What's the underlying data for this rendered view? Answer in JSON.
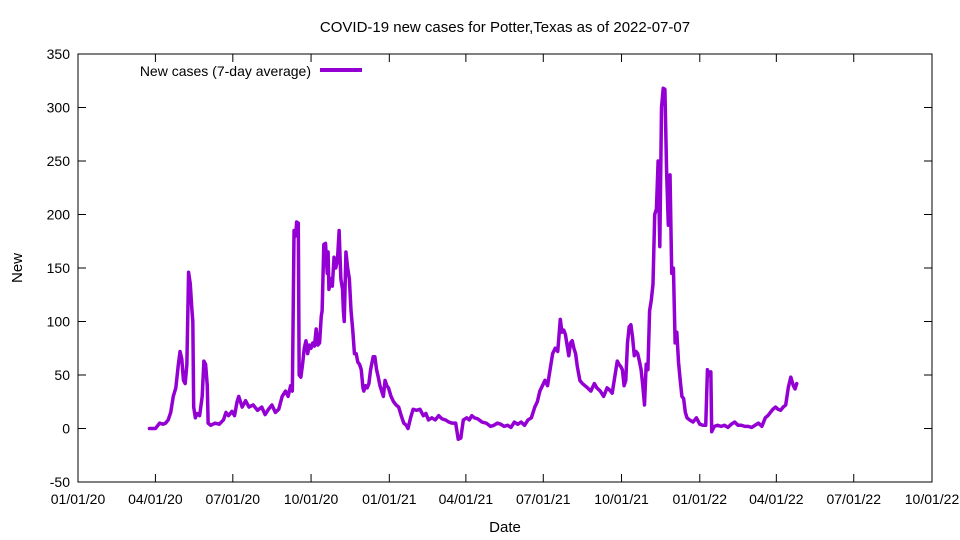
{
  "chart_data": {
    "type": "line",
    "title": "COVID-19 new cases for Potter,Texas as of 2022-07-07",
    "xlabel": "Date",
    "ylabel": "New",
    "xlim": [
      "2020-01-01",
      "2022-10-01"
    ],
    "ylim": [
      -50,
      350
    ],
    "x_ticks": [
      "01/01/20",
      "04/01/20",
      "07/01/20",
      "10/01/20",
      "01/01/21",
      "04/01/21",
      "07/01/21",
      "10/01/21",
      "01/01/22",
      "04/01/22",
      "07/01/22",
      "10/01/22"
    ],
    "x_tick_dates": [
      "2020-01-01",
      "2020-04-01",
      "2020-07-01",
      "2020-10-01",
      "2021-01-01",
      "2021-04-01",
      "2021-07-01",
      "2021-10-01",
      "2022-01-01",
      "2022-04-01",
      "2022-07-01",
      "2022-10-01"
    ],
    "y_ticks": [
      "-50",
      "0",
      "50",
      "100",
      "150",
      "200",
      "250",
      "300",
      "350"
    ],
    "y_tick_values": [
      -50,
      0,
      50,
      100,
      150,
      200,
      250,
      300,
      350
    ],
    "legend_position": "top-left",
    "grid": false,
    "series": [
      {
        "name": "New cases (7-day average)",
        "color": "#9400d3",
        "points": [
          [
            "2020-03-25",
            0
          ],
          [
            "2020-04-01",
            0
          ],
          [
            "2020-04-03",
            2
          ],
          [
            "2020-04-06",
            5
          ],
          [
            "2020-04-10",
            4
          ],
          [
            "2020-04-13",
            5
          ],
          [
            "2020-04-16",
            8
          ],
          [
            "2020-04-19",
            15
          ],
          [
            "2020-04-22",
            30
          ],
          [
            "2020-04-25",
            38
          ],
          [
            "2020-04-28",
            60
          ],
          [
            "2020-04-30",
            72
          ],
          [
            "2020-05-02",
            65
          ],
          [
            "2020-05-04",
            45
          ],
          [
            "2020-05-06",
            42
          ],
          [
            "2020-05-08",
            60
          ],
          [
            "2020-05-10",
            146
          ],
          [
            "2020-05-12",
            135
          ],
          [
            "2020-05-14",
            110
          ],
          [
            "2020-05-15",
            100
          ],
          [
            "2020-05-16",
            20
          ],
          [
            "2020-05-18",
            10
          ],
          [
            "2020-05-20",
            14
          ],
          [
            "2020-05-23",
            12
          ],
          [
            "2020-05-26",
            30
          ],
          [
            "2020-05-28",
            63
          ],
          [
            "2020-05-30",
            60
          ],
          [
            "2020-06-01",
            40
          ],
          [
            "2020-06-02",
            5
          ],
          [
            "2020-06-05",
            3
          ],
          [
            "2020-06-10",
            5
          ],
          [
            "2020-06-15",
            4
          ],
          [
            "2020-06-20",
            8
          ],
          [
            "2020-06-23",
            15
          ],
          [
            "2020-06-26",
            12
          ],
          [
            "2020-06-30",
            16
          ],
          [
            "2020-07-03",
            12
          ],
          [
            "2020-07-06",
            25
          ],
          [
            "2020-07-08",
            30
          ],
          [
            "2020-07-12",
            20
          ],
          [
            "2020-07-16",
            26
          ],
          [
            "2020-07-20",
            20
          ],
          [
            "2020-07-25",
            22
          ],
          [
            "2020-07-30",
            17
          ],
          [
            "2020-08-04",
            20
          ],
          [
            "2020-08-08",
            13
          ],
          [
            "2020-08-12",
            18
          ],
          [
            "2020-08-16",
            22
          ],
          [
            "2020-08-20",
            15
          ],
          [
            "2020-08-24",
            18
          ],
          [
            "2020-08-28",
            30
          ],
          [
            "2020-09-01",
            35
          ],
          [
            "2020-09-04",
            30
          ],
          [
            "2020-09-07",
            40
          ],
          [
            "2020-09-09",
            35
          ],
          [
            "2020-09-11",
            185
          ],
          [
            "2020-09-13",
            180
          ],
          [
            "2020-09-14",
            193
          ],
          [
            "2020-09-16",
            192
          ],
          [
            "2020-09-17",
            50
          ],
          [
            "2020-09-19",
            48
          ],
          [
            "2020-09-21",
            60
          ],
          [
            "2020-09-23",
            75
          ],
          [
            "2020-09-25",
            82
          ],
          [
            "2020-09-27",
            70
          ],
          [
            "2020-09-29",
            78
          ],
          [
            "2020-10-01",
            75
          ],
          [
            "2020-10-03",
            80
          ],
          [
            "2020-10-05",
            77
          ],
          [
            "2020-10-07",
            93
          ],
          [
            "2020-10-09",
            78
          ],
          [
            "2020-10-11",
            80
          ],
          [
            "2020-10-13",
            105
          ],
          [
            "2020-10-14",
            110
          ],
          [
            "2020-10-16",
            172
          ],
          [
            "2020-10-18",
            173
          ],
          [
            "2020-10-20",
            145
          ],
          [
            "2020-10-21",
            165
          ],
          [
            "2020-10-22",
            130
          ],
          [
            "2020-10-24",
            140
          ],
          [
            "2020-10-26",
            133
          ],
          [
            "2020-10-28",
            160
          ],
          [
            "2020-10-30",
            150
          ],
          [
            "2020-11-01",
            157
          ],
          [
            "2020-11-03",
            185
          ],
          [
            "2020-11-05",
            140
          ],
          [
            "2020-11-07",
            130
          ],
          [
            "2020-11-08",
            110
          ],
          [
            "2020-11-09",
            100
          ],
          [
            "2020-11-11",
            165
          ],
          [
            "2020-11-13",
            150
          ],
          [
            "2020-11-15",
            140
          ],
          [
            "2020-11-17",
            110
          ],
          [
            "2020-11-19",
            92
          ],
          [
            "2020-11-21",
            70
          ],
          [
            "2020-11-23",
            70
          ],
          [
            "2020-11-25",
            62
          ],
          [
            "2020-11-27",
            60
          ],
          [
            "2020-11-29",
            55
          ],
          [
            "2020-12-01",
            38
          ],
          [
            "2020-12-02",
            35
          ],
          [
            "2020-12-04",
            40
          ],
          [
            "2020-12-06",
            38
          ],
          [
            "2020-12-08",
            42
          ],
          [
            "2020-12-10",
            55
          ],
          [
            "2020-12-13",
            67
          ],
          [
            "2020-12-15",
            67
          ],
          [
            "2020-12-17",
            55
          ],
          [
            "2020-12-19",
            48
          ],
          [
            "2020-12-21",
            40
          ],
          [
            "2020-12-23",
            35
          ],
          [
            "2020-12-25",
            30
          ],
          [
            "2020-12-27",
            45
          ],
          [
            "2020-12-29",
            40
          ],
          [
            "2020-12-31",
            38
          ],
          [
            "2021-01-03",
            30
          ],
          [
            "2021-01-06",
            25
          ],
          [
            "2021-01-09",
            22
          ],
          [
            "2021-01-12",
            20
          ],
          [
            "2021-01-15",
            12
          ],
          [
            "2021-01-18",
            5
          ],
          [
            "2021-01-21",
            3
          ],
          [
            "2021-01-23",
            0
          ],
          [
            "2021-01-26",
            10
          ],
          [
            "2021-01-29",
            18
          ],
          [
            "2021-02-02",
            17
          ],
          [
            "2021-02-06",
            18
          ],
          [
            "2021-02-10",
            12
          ],
          [
            "2021-02-13",
            14
          ],
          [
            "2021-02-16",
            8
          ],
          [
            "2021-02-20",
            10
          ],
          [
            "2021-02-24",
            8
          ],
          [
            "2021-02-28",
            12
          ],
          [
            "2021-03-04",
            9
          ],
          [
            "2021-03-08",
            8
          ],
          [
            "2021-03-12",
            6
          ],
          [
            "2021-03-16",
            5
          ],
          [
            "2021-03-20",
            5
          ],
          [
            "2021-03-23",
            -10
          ],
          [
            "2021-03-26",
            -9
          ],
          [
            "2021-03-29",
            8
          ],
          [
            "2021-04-02",
            10
          ],
          [
            "2021-04-05",
            8
          ],
          [
            "2021-04-08",
            12
          ],
          [
            "2021-04-11",
            10
          ],
          [
            "2021-04-15",
            9
          ],
          [
            "2021-04-20",
            6
          ],
          [
            "2021-04-25",
            5
          ],
          [
            "2021-04-30",
            2
          ],
          [
            "2021-05-04",
            3
          ],
          [
            "2021-05-08",
            5
          ],
          [
            "2021-05-12",
            4
          ],
          [
            "2021-05-16",
            2
          ],
          [
            "2021-05-20",
            3
          ],
          [
            "2021-05-24",
            1
          ],
          [
            "2021-05-28",
            6
          ],
          [
            "2021-06-01",
            4
          ],
          [
            "2021-06-05",
            6
          ],
          [
            "2021-06-09",
            3
          ],
          [
            "2021-06-13",
            8
          ],
          [
            "2021-06-17",
            10
          ],
          [
            "2021-06-21",
            20
          ],
          [
            "2021-06-24",
            25
          ],
          [
            "2021-06-27",
            35
          ],
          [
            "2021-06-30",
            40
          ],
          [
            "2021-07-03",
            45
          ],
          [
            "2021-07-06",
            40
          ],
          [
            "2021-07-09",
            55
          ],
          [
            "2021-07-12",
            70
          ],
          [
            "2021-07-15",
            75
          ],
          [
            "2021-07-18",
            72
          ],
          [
            "2021-07-21",
            102
          ],
          [
            "2021-07-23",
            90
          ],
          [
            "2021-07-25",
            92
          ],
          [
            "2021-07-27",
            88
          ],
          [
            "2021-07-29",
            78
          ],
          [
            "2021-07-31",
            68
          ],
          [
            "2021-08-02",
            80
          ],
          [
            "2021-08-04",
            82
          ],
          [
            "2021-08-06",
            75
          ],
          [
            "2021-08-08",
            70
          ],
          [
            "2021-08-10",
            58
          ],
          [
            "2021-08-13",
            45
          ],
          [
            "2021-08-16",
            42
          ],
          [
            "2021-08-19",
            40
          ],
          [
            "2021-08-22",
            38
          ],
          [
            "2021-08-26",
            35
          ],
          [
            "2021-08-30",
            42
          ],
          [
            "2021-09-02",
            38
          ],
          [
            "2021-09-06",
            35
          ],
          [
            "2021-09-10",
            30
          ],
          [
            "2021-09-14",
            38
          ],
          [
            "2021-09-17",
            36
          ],
          [
            "2021-09-20",
            33
          ],
          [
            "2021-09-23",
            48
          ],
          [
            "2021-09-26",
            63
          ],
          [
            "2021-09-28",
            60
          ],
          [
            "2021-09-30",
            58
          ],
          [
            "2021-10-02",
            55
          ],
          [
            "2021-10-04",
            40
          ],
          [
            "2021-10-06",
            45
          ],
          [
            "2021-10-08",
            80
          ],
          [
            "2021-10-10",
            95
          ],
          [
            "2021-10-12",
            97
          ],
          [
            "2021-10-14",
            85
          ],
          [
            "2021-10-16",
            68
          ],
          [
            "2021-10-18",
            72
          ],
          [
            "2021-10-20",
            70
          ],
          [
            "2021-10-22",
            63
          ],
          [
            "2021-10-24",
            55
          ],
          [
            "2021-10-26",
            40
          ],
          [
            "2021-10-28",
            22
          ],
          [
            "2021-10-30",
            60
          ],
          [
            "2021-11-01",
            55
          ],
          [
            "2021-11-03",
            110
          ],
          [
            "2021-11-05",
            120
          ],
          [
            "2021-11-07",
            135
          ],
          [
            "2021-11-09",
            200
          ],
          [
            "2021-11-11",
            205
          ],
          [
            "2021-11-13",
            250
          ],
          [
            "2021-11-15",
            170
          ],
          [
            "2021-11-17",
            300
          ],
          [
            "2021-11-19",
            318
          ],
          [
            "2021-11-21",
            317
          ],
          [
            "2021-11-23",
            240
          ],
          [
            "2021-11-25",
            190
          ],
          [
            "2021-11-27",
            237
          ],
          [
            "2021-11-29",
            145
          ],
          [
            "2021-12-01",
            150
          ],
          [
            "2021-12-03",
            80
          ],
          [
            "2021-12-05",
            90
          ],
          [
            "2021-12-07",
            62
          ],
          [
            "2021-12-09",
            45
          ],
          [
            "2021-12-11",
            30
          ],
          [
            "2021-12-13",
            28
          ],
          [
            "2021-12-15",
            15
          ],
          [
            "2021-12-17",
            10
          ],
          [
            "2021-12-20",
            8
          ],
          [
            "2021-12-24",
            6
          ],
          [
            "2021-12-28",
            10
          ],
          [
            "2022-01-01",
            4
          ],
          [
            "2022-01-05",
            3
          ],
          [
            "2022-01-08",
            3
          ],
          [
            "2022-01-10",
            55
          ],
          [
            "2022-01-12",
            50
          ],
          [
            "2022-01-14",
            53
          ],
          [
            "2022-01-15",
            -3
          ],
          [
            "2022-01-18",
            2
          ],
          [
            "2022-01-22",
            3
          ],
          [
            "2022-01-26",
            2
          ],
          [
            "2022-01-30",
            3
          ],
          [
            "2022-02-03",
            1
          ],
          [
            "2022-02-07",
            4
          ],
          [
            "2022-02-11",
            6
          ],
          [
            "2022-02-15",
            3
          ],
          [
            "2022-02-19",
            3
          ],
          [
            "2022-02-23",
            2
          ],
          [
            "2022-02-27",
            2
          ],
          [
            "2022-03-03",
            1
          ],
          [
            "2022-03-07",
            3
          ],
          [
            "2022-03-11",
            5
          ],
          [
            "2022-03-15",
            2
          ],
          [
            "2022-03-19",
            10
          ],
          [
            "2022-03-22",
            12
          ],
          [
            "2022-03-25",
            15
          ],
          [
            "2022-03-28",
            18
          ],
          [
            "2022-03-31",
            20
          ],
          [
            "2022-04-03",
            18
          ],
          [
            "2022-04-06",
            17
          ],
          [
            "2022-04-09",
            20
          ],
          [
            "2022-04-12",
            22
          ],
          [
            "2022-04-15",
            38
          ],
          [
            "2022-04-18",
            48
          ],
          [
            "2022-04-21",
            40
          ],
          [
            "2022-04-23",
            37
          ],
          [
            "2022-04-25",
            42
          ]
        ]
      }
    ]
  }
}
